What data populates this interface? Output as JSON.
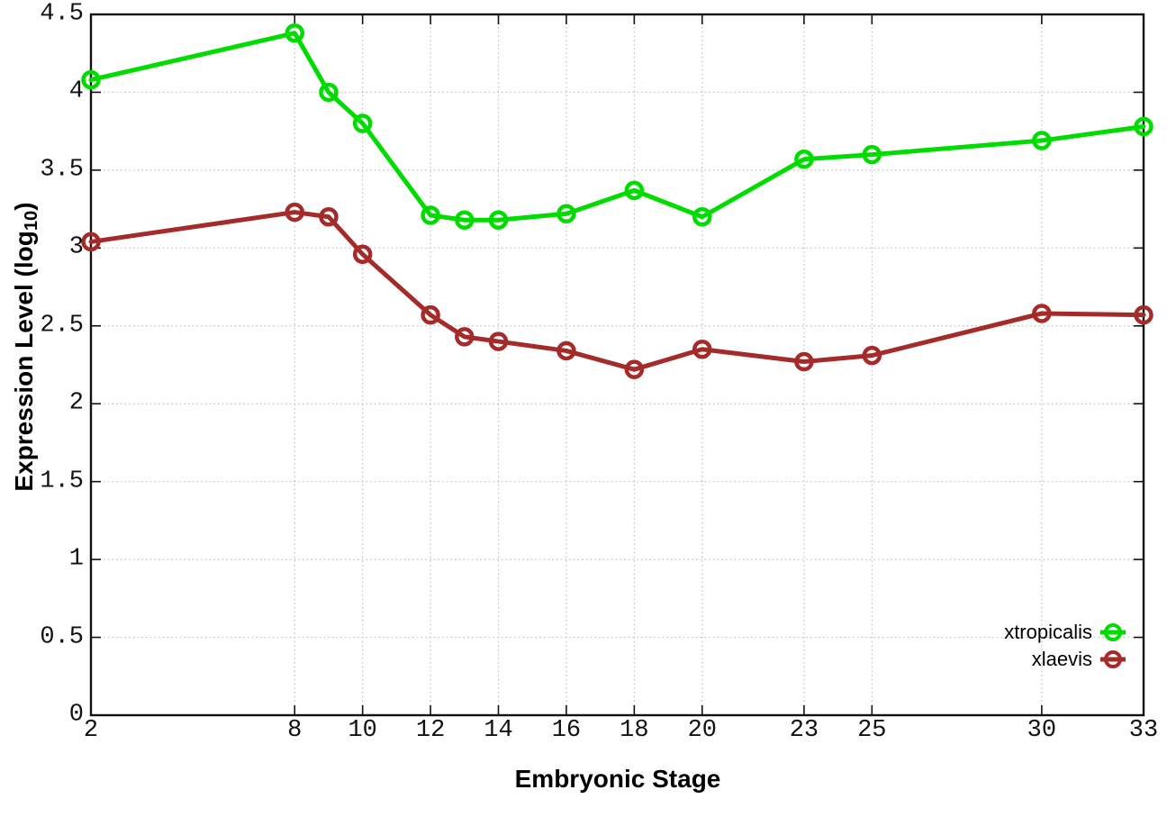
{
  "figure": {
    "background": "#ffffff",
    "axis_color": "#111111",
    "grid_color": "#bdbdbd",
    "text_color": "#000000"
  },
  "axes": {
    "x_label": "Embryonic Stage",
    "y_label_prefix": "Expression Level (log",
    "y_label_subscript": "10",
    "y_label_suffix": ")"
  },
  "legend": {
    "position": "inside-bottom-right",
    "items": [
      {
        "label": "xtropicalis",
        "color": "#00DC00"
      },
      {
        "label": "xlaevis",
        "color": "#A52A2A"
      }
    ]
  },
  "chart_data": {
    "type": "line",
    "title": "",
    "xlabel": "Embryonic Stage",
    "ylabel": "Expression Level (log10)",
    "xlim": [
      2,
      33
    ],
    "ylim": [
      0,
      4.5
    ],
    "x_ticks": [
      2,
      8,
      10,
      12,
      14,
      16,
      18,
      20,
      23,
      25,
      30,
      33
    ],
    "y_ticks": [
      0,
      0.5,
      1,
      1.5,
      2,
      2.5,
      3,
      3.5,
      4,
      4.5
    ],
    "grid": true,
    "marker": "open-circle",
    "x": [
      2,
      8,
      9,
      10,
      12,
      13,
      14,
      16,
      18,
      20,
      23,
      25,
      30,
      33
    ],
    "series": [
      {
        "name": "xtropicalis",
        "color": "#00DC00",
        "values": [
          4.08,
          4.38,
          4.0,
          3.8,
          3.21,
          3.18,
          3.18,
          3.22,
          3.37,
          3.2,
          3.57,
          3.6,
          3.69,
          3.78
        ]
      },
      {
        "name": "xlaevis",
        "color": "#A52A2A",
        "values": [
          3.04,
          3.23,
          3.2,
          2.96,
          2.57,
          2.43,
          2.4,
          2.34,
          2.22,
          2.35,
          2.27,
          2.31,
          2.58,
          2.57
        ]
      }
    ]
  }
}
